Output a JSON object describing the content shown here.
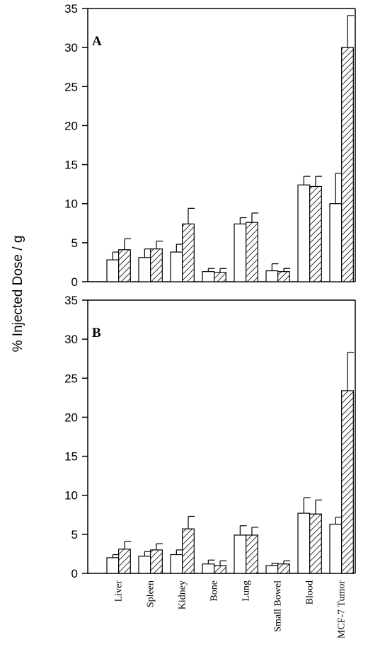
{
  "chart_data": {
    "type": "bar",
    "ylabel": "% Injected Dose / g",
    "ylim": [
      0,
      35
    ],
    "y_ticks": [
      0,
      5,
      10,
      15,
      20,
      25,
      30,
      35
    ],
    "categories": [
      "Liver",
      "Spleen",
      "Kidney",
      "Bone",
      "Lung",
      "Small Bowel",
      "Blood",
      "MCF-7 Tumor"
    ],
    "series_styles": [
      {
        "fill": "#ffffff",
        "pattern": "none"
      },
      {
        "fill": "#ffffff",
        "pattern": "diagonal-hatch"
      }
    ],
    "panels": [
      {
        "label": "A",
        "series": [
          {
            "values": [
              2.8,
              3.1,
              3.8,
              1.3,
              7.4,
              1.4,
              12.4,
              10.0
            ],
            "errors": [
              1.0,
              1.1,
              1.0,
              0.4,
              0.8,
              0.9,
              1.1,
              3.9
            ]
          },
          {
            "values": [
              4.1,
              4.2,
              7.4,
              1.2,
              7.6,
              1.3,
              12.2,
              30.0
            ],
            "errors": [
              1.4,
              1.0,
              2.0,
              0.5,
              1.2,
              0.4,
              1.3,
              4.1
            ]
          }
        ]
      },
      {
        "label": "B",
        "series": [
          {
            "values": [
              2.0,
              2.2,
              2.4,
              1.2,
              4.9,
              1.0,
              7.7,
              6.3
            ],
            "errors": [
              0.4,
              0.6,
              0.6,
              0.5,
              1.2,
              0.3,
              2.0,
              0.9
            ]
          },
          {
            "values": [
              3.1,
              3.0,
              5.7,
              1.0,
              4.9,
              1.2,
              7.6,
              23.4
            ],
            "errors": [
              1.0,
              0.8,
              1.6,
              0.6,
              1.0,
              0.4,
              1.8,
              4.9
            ]
          }
        ]
      }
    ]
  }
}
